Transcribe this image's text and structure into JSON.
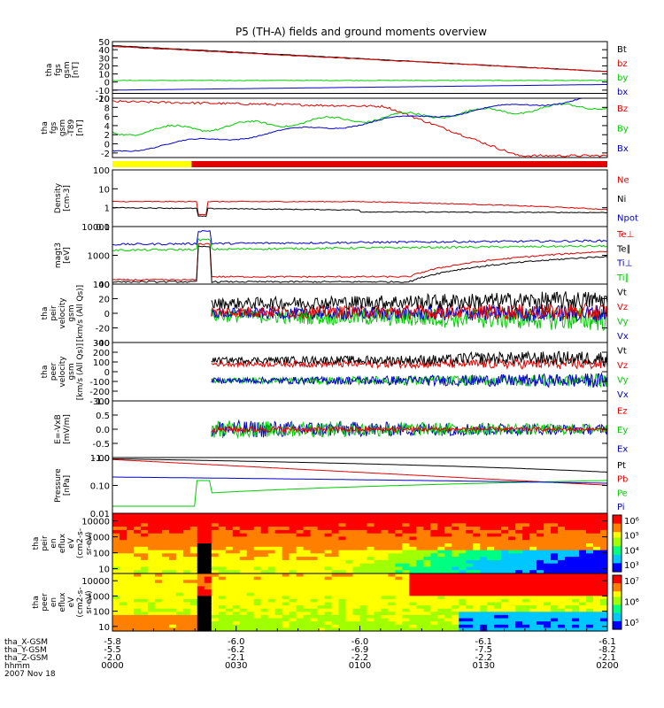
{
  "title": "P5 (TH-A) fields and ground moments overview",
  "colors": {
    "black": "#000000",
    "red": "#e00000",
    "green": "#00cc00",
    "blue": "#0000cc",
    "yellow": "#ffff00"
  },
  "chart_data": {
    "type": "line",
    "x_axis": {
      "range": [
        "0000",
        "0200"
      ],
      "tick_labels": [
        "0000",
        "0030",
        "0100",
        "0130",
        "0200"
      ],
      "rows": [
        {
          "label": "tha_X-GSM",
          "values": [
            "-5.8",
            "-6.0",
            "-6.0",
            "-6.1",
            "-6.1"
          ]
        },
        {
          "label": "tha_Y-GSM",
          "values": [
            "-5.5",
            "-6.2",
            "-6.9",
            "-7.5",
            "-8.2"
          ]
        },
        {
          "label": "tha_Z-GSM",
          "values": [
            "-2.0",
            "-2.1",
            "-2.2",
            "-2.2",
            "-2.1"
          ]
        },
        {
          "label": "hhmm",
          "values": []
        },
        {
          "label": "2007 Nov 18",
          "values": []
        }
      ]
    },
    "panels": [
      {
        "id": "fgs",
        "ylabel": [
          "tha",
          "fgs",
          "gsm",
          "[nT]"
        ],
        "ylim": [
          -20,
          50
        ],
        "yticks": [
          "50",
          "40",
          "30",
          "20",
          "10",
          "0",
          "-10",
          "-20"
        ],
        "legend": [
          {
            "name": "Bt",
            "color": "black"
          },
          {
            "name": "bz",
            "color": "red"
          },
          {
            "name": "by",
            "color": "green"
          },
          {
            "name": "bx",
            "color": "blue"
          }
        ]
      },
      {
        "id": "fgs_t89",
        "ylabel": [
          "tha",
          "fgs",
          "gsm",
          "-T89",
          "[nT]"
        ],
        "ylim": [
          -3,
          10
        ],
        "yticks": [
          "10",
          "8",
          "6",
          "4",
          "2",
          "0",
          "-2"
        ],
        "legend": [
          {
            "name": "Bz",
            "color": "red"
          },
          {
            "name": "By",
            "color": "green"
          },
          {
            "name": "Bx",
            "color": "blue"
          }
        ]
      },
      {
        "id": "density",
        "ylabel": [
          "Density",
          "[cm-3]"
        ],
        "ylim": [
          0.1,
          100
        ],
        "log": true,
        "yticks": [
          "100",
          "10",
          "1",
          "0.1"
        ],
        "legend": [
          {
            "name": "Ne",
            "color": "red"
          },
          {
            "name": "Ni",
            "color": "black"
          },
          {
            "name": "Npot",
            "color": "blue"
          }
        ]
      },
      {
        "id": "temp",
        "ylabel": [
          "magt3",
          "[eV]"
        ],
        "ylim": [
          100,
          10000
        ],
        "log": true,
        "yticks": [
          "10000",
          "1000",
          "100"
        ],
        "legend": [
          {
            "name": "Te⊥",
            "color": "red"
          },
          {
            "name": "Te∥",
            "color": "black"
          },
          {
            "name": "Ti⊥",
            "color": "blue"
          },
          {
            "name": "Ti∥",
            "color": "green"
          }
        ]
      },
      {
        "id": "peir_vel",
        "ylabel": [
          "tha",
          "peir",
          "velocity",
          "gsm",
          "[km/s (All Qs)]"
        ],
        "ylim": [
          -40,
          40
        ],
        "yticks": [
          "40",
          "20",
          "0",
          "-20",
          "-40"
        ],
        "legend": [
          {
            "name": "Vt",
            "color": "black"
          },
          {
            "name": "Vz",
            "color": "red"
          },
          {
            "name": "Vy",
            "color": "green"
          },
          {
            "name": "Vx",
            "color": "blue"
          }
        ]
      },
      {
        "id": "peer_vel",
        "ylabel": [
          "tha",
          "peer",
          "velocity",
          "gsm",
          "[km/s (All Qs)]"
        ],
        "ylim": [
          -300,
          300
        ],
        "yticks": [
          "300",
          "200",
          "100",
          "0",
          "-100",
          "-200",
          "-300"
        ],
        "legend": [
          {
            "name": "Vt",
            "color": "black"
          },
          {
            "name": "Vz",
            "color": "red"
          },
          {
            "name": "Vy",
            "color": "green"
          },
          {
            "name": "Vx",
            "color": "blue"
          }
        ]
      },
      {
        "id": "efield",
        "ylabel": [
          "E=-VxB",
          "[mV/m]"
        ],
        "ylim": [
          -1.0,
          1.0
        ],
        "yticks": [
          "1.0",
          "0.5",
          "0.0",
          "-0.5",
          "-1.0"
        ],
        "legend": [
          {
            "name": "Ez",
            "color": "red"
          },
          {
            "name": "Ey",
            "color": "green"
          },
          {
            "name": "Ex",
            "color": "blue"
          }
        ]
      },
      {
        "id": "pressure",
        "ylabel": [
          "Pressure",
          "[nPa]"
        ],
        "ylim": [
          0.01,
          1.0
        ],
        "log": true,
        "yticks": [
          "1.00",
          "0.10",
          "0.01"
        ],
        "legend": [
          {
            "name": "Pt",
            "color": "black"
          },
          {
            "name": "Pb",
            "color": "red"
          },
          {
            "name": "Pe",
            "color": "green"
          },
          {
            "name": "Pi",
            "color": "blue"
          }
        ]
      },
      {
        "id": "peir_spec",
        "type": "heatmap",
        "ylabel": [
          "tha",
          "peir",
          "en",
          "eflux",
          "eV",
          "(cm2-s-",
          "sr-eV)"
        ],
        "ylim": [
          5,
          30000
        ],
        "log": true,
        "yticks": [
          "10000",
          "1000",
          "100",
          "10"
        ],
        "colorbar_ticks": [
          "10⁶",
          "10⁵",
          "10⁴",
          "10³"
        ]
      },
      {
        "id": "peer_spec",
        "type": "heatmap",
        "ylabel": [
          "tha",
          "peer",
          "en",
          "eflux",
          "eV",
          "(cm2-s-",
          "sr-eV)"
        ],
        "ylim": [
          5,
          30000
        ],
        "log": true,
        "yticks": [
          "10000",
          "1000",
          "100",
          "10"
        ],
        "colorbar_ticks": [
          "10⁷",
          "10⁶",
          "10⁵"
        ]
      }
    ]
  }
}
